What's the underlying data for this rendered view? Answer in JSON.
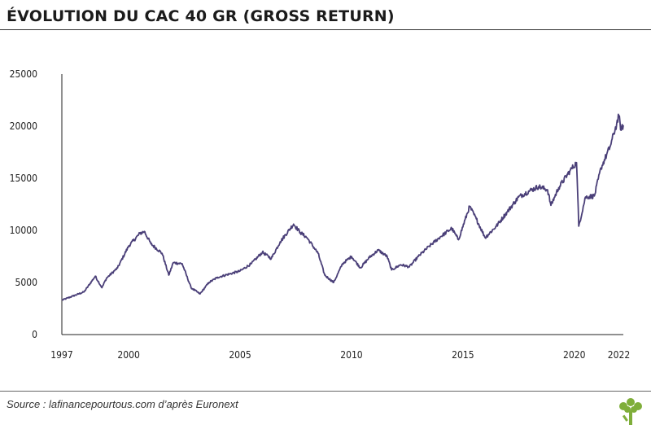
{
  "header": {
    "title": "ÉVOLUTION DU CAC 40 GR (GROSS RETURN)"
  },
  "footer": {
    "source": "Source : lafinancepourtous.com d’après Euronext"
  },
  "colors": {
    "line": "#4a3f78",
    "axis": "#222222",
    "accent_green": "#7fae3a"
  },
  "logo": {
    "icon": "tree-icon"
  },
  "chart_data": {
    "type": "line",
    "title": "ÉVOLUTION DU CAC 40 GR (GROSS RETURN)",
    "xlabel": "",
    "ylabel": "",
    "xlim": [
      1997,
      2022.2
    ],
    "ylim": [
      0,
      25000
    ],
    "x_ticks": [
      "1997",
      "2000",
      "2005",
      "2010",
      "2015",
      "2020",
      "2022"
    ],
    "y_ticks": [
      "0",
      "5000",
      "10000",
      "15000",
      "20000",
      "25000"
    ],
    "grid": false,
    "series": [
      {
        "name": "",
        "points": [
          [
            1997.0,
            3300
          ],
          [
            1997.5,
            3700
          ],
          [
            1998.0,
            4100
          ],
          [
            1998.5,
            5600
          ],
          [
            1998.8,
            4500
          ],
          [
            1999.0,
            5400
          ],
          [
            1999.5,
            6400
          ],
          [
            2000.0,
            8500
          ],
          [
            2000.5,
            9700
          ],
          [
            2000.7,
            9900
          ],
          [
            2001.0,
            8700
          ],
          [
            2001.5,
            7800
          ],
          [
            2001.8,
            5700
          ],
          [
            2002.0,
            6900
          ],
          [
            2002.4,
            6800
          ],
          [
            2002.8,
            4500
          ],
          [
            2003.2,
            3900
          ],
          [
            2003.6,
            5000
          ],
          [
            2004.0,
            5500
          ],
          [
            2004.5,
            5800
          ],
          [
            2005.0,
            6100
          ],
          [
            2005.5,
            6800
          ],
          [
            2006.0,
            7900
          ],
          [
            2006.4,
            7300
          ],
          [
            2006.8,
            8900
          ],
          [
            2007.4,
            10600
          ],
          [
            2007.7,
            9800
          ],
          [
            2008.0,
            9300
          ],
          [
            2008.5,
            7800
          ],
          [
            2008.8,
            5700
          ],
          [
            2009.2,
            5000
          ],
          [
            2009.6,
            6800
          ],
          [
            2010.0,
            7500
          ],
          [
            2010.4,
            6400
          ],
          [
            2010.8,
            7400
          ],
          [
            2011.2,
            8100
          ],
          [
            2011.6,
            7500
          ],
          [
            2011.8,
            6200
          ],
          [
            2012.2,
            6700
          ],
          [
            2012.6,
            6500
          ],
          [
            2013.0,
            7500
          ],
          [
            2013.5,
            8500
          ],
          [
            2014.0,
            9400
          ],
          [
            2014.5,
            10200
          ],
          [
            2014.8,
            9100
          ],
          [
            2015.3,
            12300
          ],
          [
            2015.6,
            11100
          ],
          [
            2016.0,
            9300
          ],
          [
            2016.5,
            10400
          ],
          [
            2017.0,
            11800
          ],
          [
            2017.5,
            13200
          ],
          [
            2018.0,
            13800
          ],
          [
            2018.4,
            14200
          ],
          [
            2018.8,
            13900
          ],
          [
            2018.95,
            12400
          ],
          [
            2019.3,
            14100
          ],
          [
            2019.8,
            15700
          ],
          [
            2020.1,
            16500
          ],
          [
            2020.2,
            10400
          ],
          [
            2020.5,
            13200
          ],
          [
            2020.9,
            13300
          ],
          [
            2021.2,
            16000
          ],
          [
            2021.6,
            18000
          ],
          [
            2021.9,
            20200
          ],
          [
            2022.0,
            21000
          ],
          [
            2022.1,
            19600
          ],
          [
            2022.2,
            20100
          ]
        ]
      }
    ]
  }
}
